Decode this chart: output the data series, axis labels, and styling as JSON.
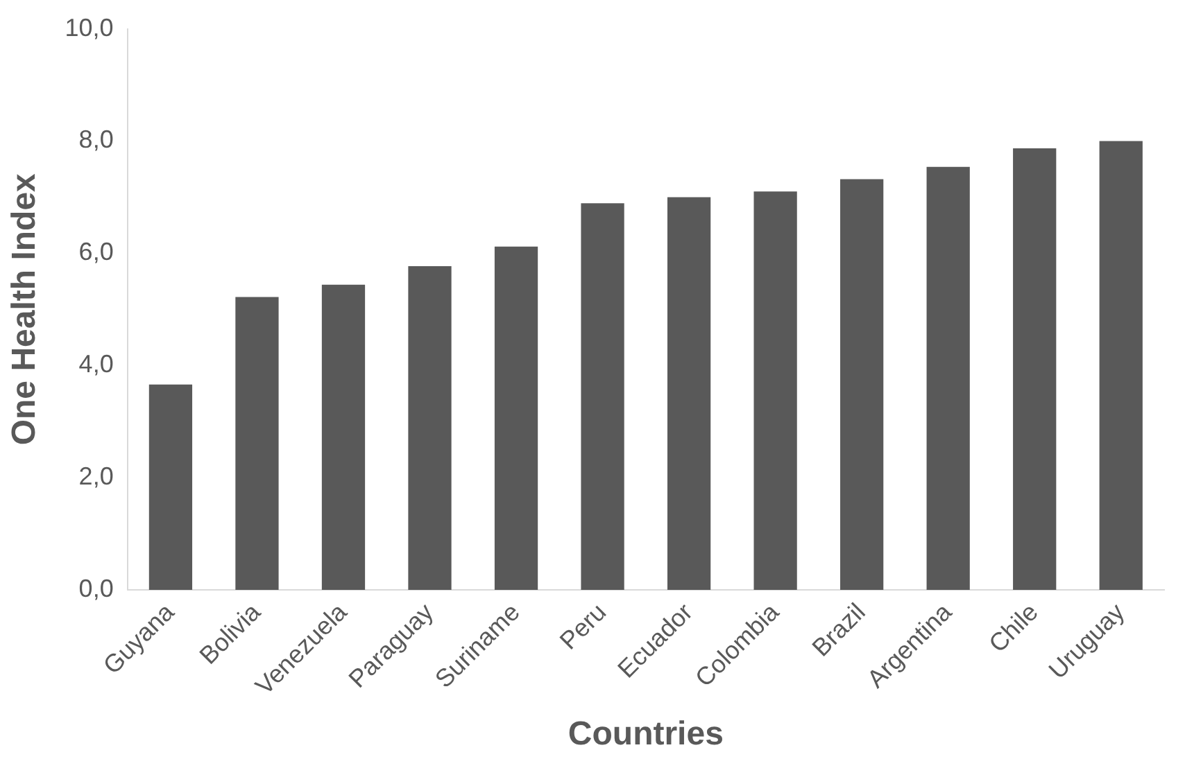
{
  "chart_data": {
    "type": "bar",
    "xlabel": "Countries",
    "ylabel": "One Health Index",
    "categories": [
      "Guyana",
      "Bolivia",
      "Venezuela",
      "Paraguay",
      "Suriname",
      "Peru",
      "Ecuador",
      "Colombia",
      "Brazil",
      "Argentina",
      "Chile",
      "Uruguay"
    ],
    "values": [
      3.66,
      5.22,
      5.44,
      5.77,
      6.12,
      6.89,
      7.0,
      7.1,
      7.32,
      7.54,
      7.87,
      8.0
    ],
    "color": "#595959",
    "ylim": [
      0,
      10
    ],
    "yticks": [
      {
        "value": 0,
        "label": "0,0"
      },
      {
        "value": 2,
        "label": "2,0"
      },
      {
        "value": 4,
        "label": "4,0"
      },
      {
        "value": 6,
        "label": "6,0"
      },
      {
        "value": 8,
        "label": "8,0"
      },
      {
        "value": 10,
        "label": "10,0"
      }
    ],
    "grid": false,
    "legend": false
  }
}
